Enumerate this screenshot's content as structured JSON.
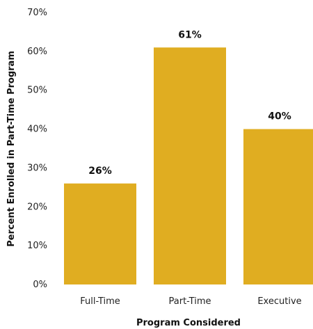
{
  "chart_data": {
    "type": "bar",
    "categories": [
      "Full-Time",
      "Part-Time",
      "Executive"
    ],
    "values": [
      26,
      61,
      40
    ],
    "data_labels": [
      "26%",
      "61%",
      "40%"
    ],
    "title": "",
    "xlabel": "Program Considered",
    "ylabel": "Percent Enrolled in Part-Time Program",
    "ylim": [
      0,
      70
    ],
    "yticks": [
      0,
      10,
      20,
      30,
      40,
      50,
      60,
      70
    ],
    "ytick_labels": [
      "0%",
      "10%",
      "20%",
      "30%",
      "40%",
      "50%",
      "60%",
      "70%"
    ],
    "grid": false,
    "legend": "none",
    "bar_color": "#E0AD21"
  }
}
